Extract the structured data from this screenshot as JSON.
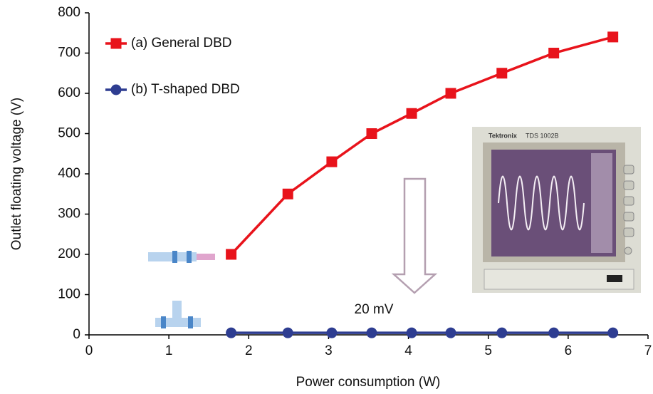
{
  "chart_data": {
    "type": "line",
    "x_label": "Power consumption (W)",
    "y_label": "Outlet floating voltage (V)",
    "xlim": [
      0,
      7
    ],
    "xticks": [
      0,
      1,
      2,
      3,
      4,
      5,
      6,
      7
    ],
    "ylim": [
      0,
      800
    ],
    "yticks": [
      0,
      100,
      200,
      300,
      400,
      500,
      600,
      700,
      800
    ],
    "legend": "top-left",
    "series": [
      {
        "name": "(a) General DBD",
        "color": "#e8131b",
        "marker": "square",
        "x": [
          1.78,
          2.49,
          3.04,
          3.54,
          4.04,
          4.53,
          5.17,
          5.82,
          6.56
        ],
        "values": [
          200,
          350,
          430,
          500,
          550,
          600,
          650,
          700,
          740
        ]
      },
      {
        "name": "(b) T-shaped DBD",
        "color": "#2e3d91",
        "marker": "circle",
        "x": [
          1.78,
          2.49,
          3.04,
          3.54,
          4.04,
          4.53,
          5.17,
          5.82,
          6.56
        ],
        "values": [
          5,
          5,
          5,
          5,
          5,
          5,
          5,
          5,
          5
        ]
      }
    ],
    "annotation": "20 mV",
    "inset_texts": [
      "Tektronix",
      "TDS 1002B"
    ]
  }
}
